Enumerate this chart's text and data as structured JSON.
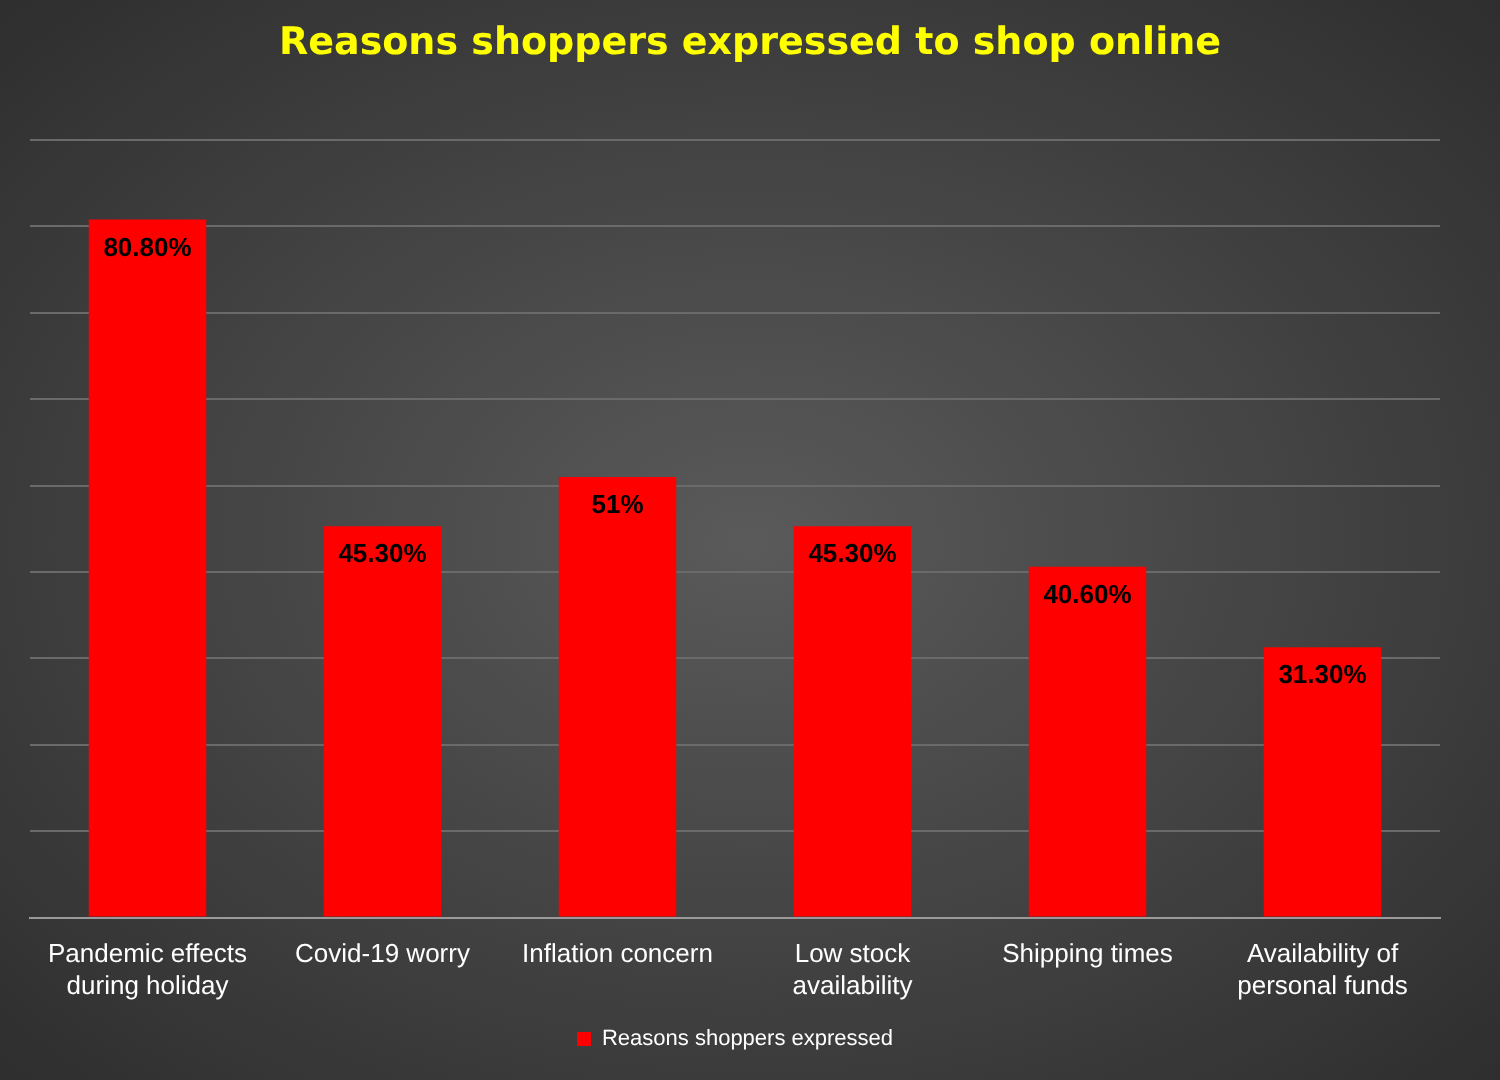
{
  "chart_data": {
    "type": "bar",
    "title": "Reasons shoppers expressed to shop online",
    "categories": [
      "Pandemic effects during holiday",
      "Covid-19 worry",
      "Inflation concern",
      "Low stock availability",
      "Shipping times",
      "Availability of personal funds"
    ],
    "series": [
      {
        "name": "Reasons shoppers expressed",
        "color": "#ff0000",
        "values": [
          80.8,
          45.3,
          51,
          45.3,
          40.6,
          31.3
        ],
        "value_labels": [
          "80.80%",
          "45.30%",
          "51%",
          "45.30%",
          "40.60%",
          "31.30%"
        ]
      }
    ],
    "ylim": [
      0,
      90
    ],
    "yticks": [
      {
        "value": 0,
        "label": null
      },
      {
        "value": 10,
        "label": null
      },
      {
        "value": 20,
        "label": null
      },
      {
        "value": 30,
        "label": null
      },
      {
        "value": 40,
        "label": null
      },
      {
        "value": 50,
        "label": null
      },
      {
        "value": 60,
        "label": null
      },
      {
        "value": 70,
        "label": null
      },
      {
        "value": 80,
        "label": null
      },
      {
        "value": 90,
        "label": null
      }
    ],
    "tick_labels": "x",
    "grid": "y",
    "legend": "bottom"
  }
}
